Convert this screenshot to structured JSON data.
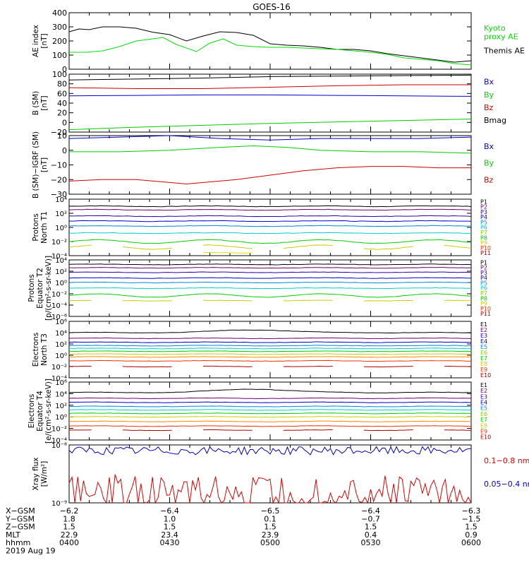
{
  "title": "GOES-16",
  "chart_data": [
    {
      "id": "ae",
      "type": "line",
      "ylabel": [
        "AE index",
        "[nT]"
      ],
      "ylim": [
        0,
        400
      ],
      "ticks": [
        0,
        100,
        200,
        300,
        400
      ],
      "tick_labels": [
        "0",
        "100",
        "200",
        "300",
        "400"
      ],
      "legend": [
        {
          "lines": [
            "Kyoto",
            "proxy AE"
          ],
          "color": "#00dd00"
        },
        {
          "lines": [
            "Themis AE"
          ],
          "color": "#000000"
        }
      ],
      "series": [
        {
          "name": "Themis AE",
          "color": "#000000",
          "x": [
            0,
            3,
            6,
            10,
            15,
            20,
            25,
            30,
            35,
            40,
            45,
            50,
            55,
            60,
            65,
            70,
            75,
            80,
            85,
            90,
            95,
            100,
            105,
            110,
            115,
            120
          ],
          "y": [
            265,
            285,
            280,
            300,
            300,
            290,
            262,
            245,
            200,
            235,
            265,
            260,
            240,
            180,
            170,
            165,
            155,
            140,
            140,
            130,
            110,
            95,
            80,
            65,
            50,
            60
          ]
        },
        {
          "name": "Kyoto proxy AE",
          "color": "#00dd00",
          "x": [
            0,
            5,
            10,
            15,
            20,
            25,
            28,
            32,
            38,
            42,
            46,
            50,
            55,
            60,
            65,
            70,
            75,
            80,
            85,
            90,
            95,
            100,
            105,
            110,
            115,
            120
          ],
          "y": [
            120,
            120,
            130,
            160,
            200,
            215,
            225,
            175,
            125,
            185,
            215,
            170,
            160,
            155,
            155,
            150,
            145,
            140,
            130,
            120,
            105,
            80,
            70,
            60,
            40,
            30
          ]
        }
      ]
    },
    {
      "id": "bsm",
      "type": "line",
      "ylabel": [
        "B (SM)",
        "[nT]"
      ],
      "ylim": [
        -20,
        100
      ],
      "ticks": [
        -20,
        0,
        20,
        40,
        60,
        80,
        100
      ],
      "tick_labels": [
        "−20",
        "0",
        "20",
        "40",
        "60",
        "80",
        "100"
      ],
      "legend": [
        {
          "lines": [
            "Bx"
          ],
          "color": "#0000cc"
        },
        {
          "lines": [
            "By"
          ],
          "color": "#00cc00"
        },
        {
          "lines": [
            "Bz"
          ],
          "color": "#cc0000"
        },
        {
          "lines": [
            "Bmag"
          ],
          "color": "#000000"
        }
      ],
      "series": [
        {
          "name": "Bmag",
          "color": "#000000",
          "x": [
            0,
            20,
            40,
            60,
            80,
            100,
            120
          ],
          "y": [
            88,
            90,
            92,
            95,
            96,
            97,
            98
          ]
        },
        {
          "name": "Bz",
          "color": "#cc0000",
          "x": [
            0,
            20,
            40,
            60,
            80,
            100,
            120
          ],
          "y": [
            72,
            70,
            70,
            73,
            76,
            78,
            78
          ]
        },
        {
          "name": "Bx",
          "color": "#0000cc",
          "x": [
            0,
            20,
            40,
            60,
            80,
            100,
            120
          ],
          "y": [
            55,
            56,
            57,
            57,
            56,
            55,
            54
          ]
        },
        {
          "name": "By",
          "color": "#00cc00",
          "x": [
            0,
            20,
            40,
            60,
            80,
            100,
            120
          ],
          "y": [
            -15,
            -10,
            -6,
            -2,
            1,
            4,
            7
          ]
        }
      ]
    },
    {
      "id": "bigrf",
      "type": "line",
      "ylabel": [
        "B (SM)−IGRF (SM)",
        "[nT]"
      ],
      "ylim": [
        -30,
        10
      ],
      "ticks": [
        -30,
        -20,
        -10,
        0,
        10
      ],
      "tick_labels": [
        "−30",
        "−20",
        "−10",
        "0",
        "10"
      ],
      "legend": [
        {
          "lines": [
            "Bx"
          ],
          "color": "#0000cc"
        },
        {
          "lines": [
            "By"
          ],
          "color": "#00cc00"
        },
        {
          "lines": [
            "Bz"
          ],
          "color": "#cc0000"
        }
      ],
      "series": [
        {
          "name": "Bx",
          "color": "#0000cc",
          "x": [
            0,
            15,
            30,
            45,
            60,
            75,
            90,
            105,
            120
          ],
          "y": [
            8,
            9,
            10,
            8,
            7,
            8,
            8,
            8,
            9
          ]
        },
        {
          "name": "By",
          "color": "#00cc00",
          "x": [
            0,
            15,
            30,
            45,
            55,
            65,
            75,
            90,
            105,
            120
          ],
          "y": [
            -1,
            -1,
            0,
            2,
            3,
            2,
            0,
            -1,
            -1,
            -2
          ]
        },
        {
          "name": "Bz",
          "color": "#cc0000",
          "x": [
            0,
            10,
            20,
            35,
            50,
            60,
            70,
            80,
            90,
            100,
            110,
            120
          ],
          "y": [
            -21,
            -20,
            -20,
            -23,
            -20,
            -17,
            -14,
            -12,
            -11,
            -11,
            -12,
            -12
          ]
        }
      ]
    },
    {
      "id": "pn",
      "type": "line",
      "log": true,
      "ylabel": [
        "Protons",
        "North T1"
      ],
      "ylim": [
        -4,
        4
      ],
      "ticks": [
        -4,
        -2,
        0,
        2,
        4
      ],
      "tick_labels": [
        "10⁻⁴",
        "10⁻²",
        "10⁰",
        "10²",
        "10⁴"
      ],
      "legend_small": [
        "P1",
        "P2",
        "P3",
        "P4",
        "P5",
        "P6",
        "P7",
        "P8",
        "P9",
        "P10",
        "P11"
      ],
      "series": [
        {
          "name": "P1",
          "base": 3.0,
          "color": "#000000"
        },
        {
          "name": "P2",
          "base": 2.5,
          "color": "#6a006a"
        },
        {
          "name": "P3",
          "base": 1.6,
          "color": "#2a00a0"
        },
        {
          "name": "P4",
          "base": 0.9,
          "color": "#0000cc"
        },
        {
          "name": "P5",
          "base": 0.2,
          "color": "#0088dd"
        },
        {
          "name": "P6",
          "base": -0.8,
          "color": "#00cccc"
        },
        {
          "name": "P9",
          "base": -2.0,
          "color": "#00cc00",
          "wiggle": 0.25
        },
        {
          "name": "P7",
          "base": -2.8,
          "color": "#cccc00",
          "wiggle": 0.3,
          "gaps": true
        },
        {
          "name": "P8",
          "base": -3.6,
          "color": "#dddd00",
          "gaps": true,
          "partial": [
            0.25,
            0.5
          ]
        }
      ]
    },
    {
      "id": "pe",
      "type": "line",
      "log": true,
      "ylabel": [
        "Protons",
        "Equator T2",
        "[p/(cm²-s-sr-keV)]"
      ],
      "ylim": [
        -6,
        4
      ],
      "ticks": [
        -6,
        -4,
        -2,
        0,
        2,
        4
      ],
      "tick_labels": [
        "10⁻⁶",
        "10⁻⁴",
        "10⁻²",
        "10⁰",
        "10²",
        "10⁴"
      ],
      "legend_small": [
        "P1",
        "P2",
        "P3",
        "P4",
        "P5",
        "P6",
        "P7",
        "P8",
        "P9",
        "P10",
        "P11"
      ],
      "series": [
        {
          "name": "P1",
          "base": 3.2,
          "color": "#000000"
        },
        {
          "name": "P2",
          "base": 2.6,
          "color": "#6a006a"
        },
        {
          "name": "P3",
          "base": 1.8,
          "color": "#2a00a0"
        },
        {
          "name": "P4",
          "base": 0.8,
          "color": "#0000cc"
        },
        {
          "name": "P5",
          "base": 0.0,
          "color": "#0088dd"
        },
        {
          "name": "P6",
          "base": -1.0,
          "color": "#00cccc"
        },
        {
          "name": "P9",
          "base": -2.3,
          "color": "#00cc00",
          "wiggle": 0.3
        },
        {
          "name": "P7",
          "base": -3.2,
          "color": "#cccc00",
          "gaps": true
        }
      ]
    },
    {
      "id": "en",
      "type": "line",
      "log": true,
      "ylabel": [
        "Electrons",
        "North T3"
      ],
      "ylim": [
        -4,
        6
      ],
      "ticks": [
        -4,
        -2,
        0,
        2,
        4,
        6
      ],
      "tick_labels": [
        "10⁻⁴",
        "10⁻²",
        "10⁰",
        "10²",
        "10⁴",
        "10⁶"
      ],
      "legend_small": [
        "E1",
        "E2",
        "E3",
        "E4",
        "E5",
        "E6",
        "E7",
        "E8",
        "E9",
        "E10"
      ],
      "series": [
        {
          "name": "E1",
          "base": 4.0,
          "color": "#000000",
          "bump": 0.5
        },
        {
          "name": "E2",
          "base": 3.0,
          "color": "#6a006a"
        },
        {
          "name": "E3",
          "base": 2.3,
          "color": "#0000cc"
        },
        {
          "name": "E4",
          "base": 1.7,
          "color": "#0088dd"
        },
        {
          "name": "E5",
          "base": 1.2,
          "color": "#00cccc"
        },
        {
          "name": "E6",
          "base": 0.7,
          "color": "#00cc00"
        },
        {
          "name": "E7",
          "base": 0.2,
          "color": "#cccc00"
        },
        {
          "name": "E8",
          "base": -0.3,
          "color": "#ff8800"
        },
        {
          "name": "E9",
          "base": -1.0,
          "color": "#ee3300"
        },
        {
          "name": "E10",
          "base": -2.0,
          "color": "#aa0000",
          "gaps": true
        }
      ]
    },
    {
      "id": "ee",
      "type": "line",
      "log": true,
      "ylabel": [
        "Electrons",
        "Equator T4",
        "[e/(cm²-s-sr-keV)]"
      ],
      "ylim": [
        -4,
        6
      ],
      "ticks": [
        -4,
        -2,
        0,
        2,
        4,
        6
      ],
      "tick_labels": [
        "10⁻⁴",
        "10⁻²",
        "10⁰",
        "10²",
        "10⁴",
        "10⁶"
      ],
      "legend_small": [
        "E1",
        "E2",
        "E3",
        "E4",
        "E5",
        "E6",
        "E7",
        "E8",
        "E9",
        "E10"
      ],
      "series": [
        {
          "name": "E1",
          "base": 4.2,
          "color": "#000000",
          "bump": 0.6
        },
        {
          "name": "E2",
          "base": 3.2,
          "color": "#6a006a"
        },
        {
          "name": "E3",
          "base": 2.5,
          "color": "#0000cc"
        },
        {
          "name": "E4",
          "base": 1.8,
          "color": "#0088dd"
        },
        {
          "name": "E5",
          "base": 1.2,
          "color": "#00cccc"
        },
        {
          "name": "E6",
          "base": 0.6,
          "color": "#00cc00"
        },
        {
          "name": "E7",
          "base": 0.0,
          "color": "#cccc00"
        },
        {
          "name": "E8",
          "base": -0.8,
          "color": "#ff8800"
        },
        {
          "name": "E9",
          "base": -1.6,
          "color": "#ee3300"
        },
        {
          "name": "E10",
          "base": -2.3,
          "color": "#aa0000",
          "gaps": true
        }
      ]
    },
    {
      "id": "xray",
      "type": "line",
      "log": true,
      "ylabel": [
        "Xray flux",
        "[W/m²]"
      ],
      "ylim": [
        -9,
        -8
      ],
      "ticks": [
        -9,
        -8
      ],
      "tick_labels": [
        "10⁻⁹",
        "10⁻⁸"
      ],
      "legend": [
        {
          "lines": [
            "0.1−0.8 nm"
          ],
          "color": "#dd0000"
        },
        {
          "lines": [
            "0.05−0.4 nm"
          ],
          "color": "#0000cc"
        }
      ],
      "series": [
        {
          "name": "0.05−0.4 nm",
          "color": "#0000cc",
          "noisy": true,
          "base": -8.1,
          "amp": 0.07
        },
        {
          "name": "0.1−0.8 nm",
          "color": "#dd0000",
          "noisy": true,
          "base": -8.75,
          "amp": 0.25
        }
      ]
    }
  ],
  "xaxis": {
    "range": [
      0,
      120
    ],
    "ticks": [
      0,
      30,
      60,
      90,
      120
    ],
    "rows": [
      {
        "label": "X−GSM",
        "values": [
          "−6.2",
          "−6.4",
          "−6.5",
          "−6.4",
          "−6.3"
        ]
      },
      {
        "label": "Y−GSM",
        "values": [
          "1.8",
          "1.0",
          "0.1",
          "−0.7",
          "−1.5"
        ]
      },
      {
        "label": "Z−GSM",
        "values": [
          "1.5",
          "1.5",
          "1.5",
          "1.5",
          "1.5"
        ]
      },
      {
        "label": "MLT",
        "values": [
          "22.9",
          "23.4",
          "23.9",
          "0.4",
          "0.9"
        ]
      },
      {
        "label": "hhmm",
        "values": [
          "0400",
          "0430",
          "0500",
          "0530",
          "0600"
        ]
      }
    ],
    "date": "2019 Aug 19"
  }
}
